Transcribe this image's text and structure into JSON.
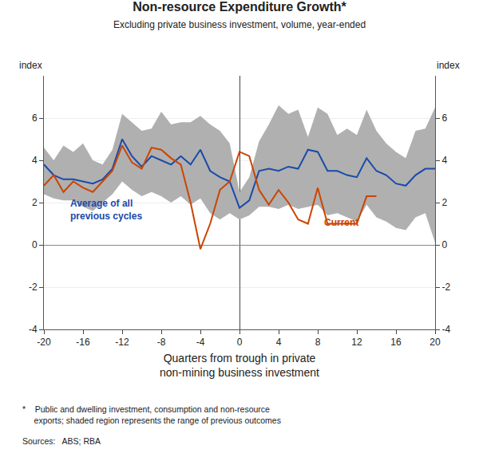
{
  "chart_data": {
    "type": "line",
    "title": "Non-resource Expenditure Growth*",
    "subtitle": "Excluding private business investment, volume, year-ended",
    "xlabel": "Quarters from trough in private\nnon-mining business investment",
    "ylabel": "index",
    "y2label": "index",
    "footnote": "*    Public and dwelling investment, consumption and non-resource\n     exports; shaded region represents the range of previous outcomes",
    "sources": "Sources:   ABS; RBA",
    "xlim": [
      -20,
      20
    ],
    "xticks": [
      -20,
      -16,
      -12,
      -8,
      -4,
      0,
      4,
      8,
      12,
      16,
      20
    ],
    "ylim": [
      -4,
      8
    ],
    "yticks": [
      -4,
      -2,
      0,
      2,
      4,
      6
    ],
    "y2lim": [
      -4,
      8
    ],
    "y2ticks": [
      -4,
      -2,
      0,
      2,
      4,
      6
    ],
    "grid": true,
    "x": [
      -20,
      -19,
      -18,
      -17,
      -16,
      -15,
      -14,
      -13,
      -12,
      -11,
      -10,
      -9,
      -8,
      -7,
      -6,
      -5,
      -4,
      -3,
      -2,
      -1,
      0,
      1,
      2,
      3,
      4,
      5,
      6,
      7,
      8,
      9,
      10,
      11,
      12,
      13,
      14,
      15,
      16,
      17,
      18,
      19,
      20
    ],
    "series": [
      {
        "name": "Average of all\nprevious cycles",
        "color": "#1a4aaa",
        "values": [
          3.8,
          3.3,
          3.1,
          3.1,
          3.0,
          2.9,
          3.1,
          3.6,
          5.0,
          4.2,
          3.7,
          4.2,
          4.0,
          3.8,
          4.2,
          3.8,
          4.5,
          3.5,
          3.2,
          3.0,
          1.75,
          2.1,
          3.5,
          3.6,
          3.5,
          3.7,
          3.6,
          4.5,
          4.4,
          3.5,
          3.5,
          3.3,
          3.2,
          4.1,
          3.5,
          3.3,
          2.9,
          2.8,
          3.3,
          3.6,
          3.6
        ]
      },
      {
        "name": "Current",
        "color": "#cc4400",
        "values": [
          2.8,
          3.3,
          2.5,
          3.0,
          2.7,
          2.5,
          3.0,
          3.5,
          4.7,
          3.9,
          3.6,
          4.6,
          4.5,
          4.1,
          3.8,
          2.0,
          -0.2,
          1.0,
          2.6,
          3.0,
          4.4,
          4.2,
          2.6,
          1.9,
          2.6,
          2.0,
          1.2,
          1.0,
          2.7,
          1.0,
          1.0,
          1.0,
          1.0,
          2.3,
          2.3,
          null,
          null,
          null,
          null,
          null,
          null
        ]
      }
    ],
    "band": {
      "color": "#b0b0b0",
      "upper": [
        4.6,
        4.0,
        4.7,
        4.4,
        4.8,
        4.0,
        3.8,
        4.5,
        6.2,
        5.8,
        5.4,
        5.5,
        6.3,
        5.7,
        5.8,
        5.8,
        6.1,
        5.7,
        5.4,
        4.8,
        2.5,
        3.2,
        4.9,
        5.7,
        6.6,
        6.2,
        6.4,
        5.1,
        6.5,
        6.2,
        5.2,
        5.5,
        5.2,
        6.4,
        5.4,
        4.8,
        4.4,
        4.1,
        5.4,
        5.5,
        6.5
      ],
      "lower": [
        2.4,
        2.2,
        2.1,
        2.1,
        1.8,
        1.6,
        2.0,
        2.4,
        3.0,
        2.6,
        2.3,
        2.5,
        2.3,
        2.0,
        2.3,
        1.9,
        2.2,
        1.5,
        1.2,
        1.5,
        1.2,
        1.4,
        1.8,
        1.8,
        1.7,
        1.9,
        1.7,
        1.8,
        1.9,
        1.4,
        1.5,
        1.3,
        1.1,
        1.9,
        1.3,
        1.1,
        0.8,
        0.7,
        1.3,
        1.5,
        0.1
      ]
    }
  }
}
